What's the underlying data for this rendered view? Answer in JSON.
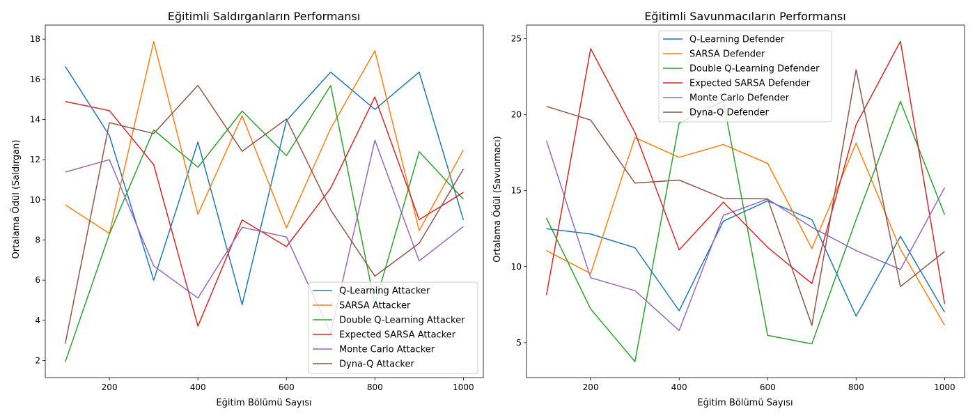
{
  "chart_data": [
    {
      "type": "line",
      "title": "Eğitimli Saldırganların Performansı",
      "xlabel": "Eğitim Bölümü Sayısı",
      "ylabel": "Ortalama Ödül (Saldırgan)",
      "xlim": [
        55,
        1045
      ],
      "ylim": [
        1.15,
        18.7
      ],
      "xticks": [
        200,
        400,
        600,
        800,
        1000
      ],
      "yticks": [
        2,
        4,
        6,
        8,
        10,
        12,
        14,
        16,
        18
      ],
      "legend_position": "lower-right",
      "x": [
        100,
        200,
        300,
        400,
        500,
        600,
        700,
        800,
        900,
        1000
      ],
      "series": [
        {
          "name": "Q-Learning Attacker",
          "color": "#1f77b4",
          "values": [
            16.65,
            13.2,
            6.0,
            12.88,
            4.78,
            13.94,
            16.36,
            14.5,
            16.36,
            9.0
          ]
        },
        {
          "name": "SARSA Attacker",
          "color": "#ff7f0e",
          "values": [
            9.75,
            8.33,
            17.88,
            9.28,
            14.18,
            8.6,
            13.55,
            17.42,
            8.47,
            12.48
          ]
        },
        {
          "name": "Double Q-Learning Attacker",
          "color": "#2ca02c",
          "values": [
            1.92,
            8.3,
            13.48,
            11.62,
            14.42,
            12.2,
            15.69,
            4.79,
            12.4,
            10.03
          ]
        },
        {
          "name": "Expected SARSA Attacker",
          "color": "#d62728",
          "values": [
            14.9,
            14.44,
            11.75,
            3.71,
            9.0,
            7.67,
            10.58,
            15.12,
            9.01,
            10.37
          ]
        },
        {
          "name": "Monte Carlo Attacker",
          "color": "#9467bd",
          "values": [
            11.38,
            12.0,
            6.71,
            5.11,
            8.63,
            8.15,
            3.36,
            12.97,
            6.96,
            8.67
          ]
        },
        {
          "name": "Dyna-Q Attacker",
          "color": "#8c564b",
          "values": [
            2.83,
            13.84,
            13.3,
            15.7,
            12.42,
            14.02,
            9.5,
            6.2,
            7.84,
            11.53
          ]
        }
      ]
    },
    {
      "type": "line",
      "title": "Eğitimli Savunmacıların Performansı",
      "xlabel": "Eğitim Bölümü Sayısı",
      "ylabel": "Ortalama Ödül (Savunmacı)",
      "xlim": [
        55,
        1045
      ],
      "ylim": [
        2.7,
        25.9
      ],
      "xticks": [
        200,
        400,
        600,
        800,
        1000
      ],
      "yticks": [
        5,
        10,
        15,
        20,
        25
      ],
      "legend_position": "upper-center",
      "x": [
        100,
        200,
        300,
        400,
        500,
        600,
        700,
        800,
        900,
        1000
      ],
      "series": [
        {
          "name": "Q-Learning Defender",
          "color": "#1f77b4",
          "values": [
            12.5,
            12.15,
            11.25,
            7.1,
            13.0,
            14.33,
            13.1,
            6.75,
            12.0,
            7.0
          ]
        },
        {
          "name": "SARSA Defender",
          "color": "#ff7f0e",
          "values": [
            11.06,
            9.55,
            18.5,
            17.2,
            18.04,
            16.8,
            11.19,
            18.13,
            11.15,
            6.15
          ]
        },
        {
          "name": "Double Q-Learning Defender",
          "color": "#2ca02c",
          "values": [
            13.2,
            7.22,
            3.75,
            19.45,
            20.9,
            5.48,
            4.92,
            13.1,
            20.88,
            13.41
          ]
        },
        {
          "name": "Expected SARSA Defender",
          "color": "#d62728",
          "values": [
            8.12,
            24.35,
            18.83,
            11.11,
            14.25,
            11.27,
            8.89,
            19.35,
            24.83,
            7.55
          ]
        },
        {
          "name": "Monte Carlo Defender",
          "color": "#9467bd",
          "values": [
            18.3,
            9.27,
            8.42,
            5.8,
            13.38,
            14.45,
            12.59,
            11.06,
            9.82,
            15.2
          ]
        },
        {
          "name": "Dyna-Q Defender",
          "color": "#8c564b",
          "values": [
            20.55,
            19.65,
            15.5,
            15.7,
            14.5,
            14.46,
            6.14,
            22.96,
            8.69,
            11.0
          ]
        }
      ]
    }
  ]
}
